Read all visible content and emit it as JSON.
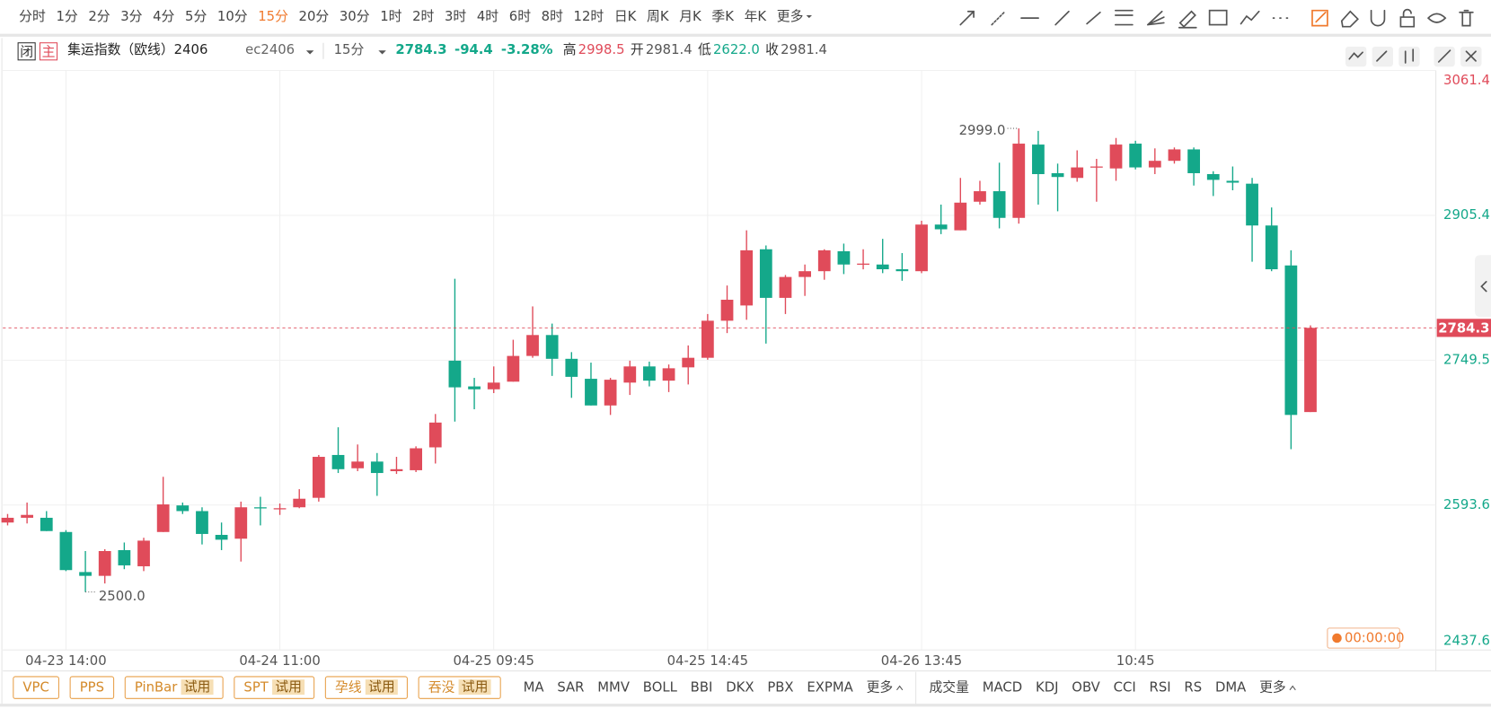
{
  "toolbar": {
    "periods": [
      "分时",
      "1分",
      "2分",
      "3分",
      "4分",
      "5分",
      "10分",
      "15分",
      "20分",
      "30分",
      "1时",
      "2时",
      "3时",
      "4时",
      "6时",
      "8时",
      "12时",
      "日K",
      "周K",
      "月K",
      "季K",
      "年K",
      "更多"
    ],
    "selected": 7
  },
  "header": {
    "close_icon": "闭",
    "main_icon": "主",
    "name": "集运指数（欧线）2406",
    "code": "ec2406",
    "period": "15分",
    "price": "2784.3",
    "change": "-94.4",
    "change_pct": "-3.28%",
    "stats": [
      {
        "label": "高",
        "value": "2998.5"
      },
      {
        "label": "开",
        "value": "2981.4"
      },
      {
        "label": "低",
        "value": "2622.0"
      },
      {
        "label": "收",
        "value": "2981.4"
      }
    ]
  },
  "chart_data": {
    "type": "candlestick",
    "categories": [
      null,
      null,
      null,
      "04-23 14:00",
      null,
      null,
      null,
      null,
      null,
      null,
      null,
      null,
      null,
      null,
      "04-24 11:00",
      null,
      null,
      null,
      null,
      null,
      null,
      null,
      null,
      null,
      null,
      "04-25 09:45",
      null,
      null,
      null,
      null,
      null,
      null,
      null,
      null,
      null,
      null,
      "04-25 14:45",
      null,
      null,
      null,
      null,
      null,
      null,
      null,
      null,
      null,
      null,
      "04-26 13:45",
      null,
      null,
      null,
      null,
      null,
      null,
      null,
      null,
      null,
      null,
      "10:45",
      null,
      null,
      null,
      null,
      null,
      null,
      null,
      null,
      null
    ],
    "open": [
      2574.8,
      2579.9,
      2579.9,
      2564.6,
      2521.5,
      2517.4,
      2545.1,
      2527.7,
      2564.6,
      2593.2,
      2587.1,
      2561.5,
      2557.4,
      2591.2,
      2589.1,
      2591.2,
      2601.4,
      2647.5,
      2633.2,
      2640.4,
      2630.1,
      2631.1,
      2655.7,
      2749.0,
      2721.3,
      2718.2,
      2726.4,
      2754.1,
      2776.6,
      2751.0,
      2729.5,
      2700.8,
      2725.4,
      2742.8,
      2727.5,
      2741.8,
      2752.1,
      2792.0,
      2808.4,
      2868.9,
      2816.6,
      2839.1,
      2845.3,
      2866.8,
      2852.5,
      2852.5,
      2847.4,
      2845.3,
      2895.5,
      2889.3,
      2920.1,
      2931.4,
      2902.7,
      2981.6,
      2950.8,
      2945.7,
      2957.0,
      2955.9,
      2982.6,
      2957.0,
      2964.1,
      2976.4,
      2949.8,
      2942.6,
      2939.5,
      2894.5,
      2851.5,
      2693.7
    ],
    "high": [
      2584.0,
      2596.3,
      2587.1,
      2566.6,
      2544.1,
      2546.1,
      2553.3,
      2558.4,
      2624.0,
      2596.3,
      2591.2,
      2574.8,
      2597.3,
      2602.5,
      2595.3,
      2610.7,
      2647.5,
      2677.3,
      2658.8,
      2649.6,
      2645.5,
      2656.8,
      2691.6,
      2837.1,
      2730.5,
      2742.8,
      2771.5,
      2807.4,
      2788.9,
      2758.2,
      2746.9,
      2730.5,
      2749.0,
      2748.0,
      2744.9,
      2765.4,
      2799.2,
      2829.9,
      2889.3,
      2873.0,
      2841.2,
      2852.5,
      2868.9,
      2875.0,
      2868.9,
      2880.1,
      2864.8,
      2899.6,
      2917.0,
      2945.7,
      2942.6,
      2962.1,
      2999.0,
      2996.3,
      2961.1,
      2975.4,
      2966.2,
      2988.7,
      2985.7,
      2977.5,
      2978.5,
      2978.5,
      2952.9,
      2958.0,
      2945.7,
      2913.9,
      2867.8,
      2787.0
    ],
    "low": [
      2571.7,
      2573.8,
      2565.6,
      2522.5,
      2500.0,
      2509.2,
      2524.6,
      2522.5,
      2564.6,
      2584.0,
      2551.2,
      2545.1,
      2532.8,
      2571.7,
      2583.0,
      2590.2,
      2597.3,
      2628.1,
      2630.1,
      2603.5,
      2627.1,
      2629.1,
      2638.3,
      2683.4,
      2696.7,
      2714.1,
      2726.4,
      2752.1,
      2732.6,
      2709.0,
      2700.8,
      2690.6,
      2712.1,
      2721.3,
      2715.2,
      2723.4,
      2750.0,
      2778.7,
      2793.0,
      2767.4,
      2799.2,
      2818.7,
      2836.1,
      2842.2,
      2847.3,
      2843.2,
      2835.0,
      2843.2,
      2885.2,
      2889.3,
      2917.0,
      2891.4,
      2896.5,
      2917.0,
      2909.8,
      2941.6,
      2920.1,
      2942.6,
      2954.9,
      2949.8,
      2961.1,
      2937.5,
      2926.2,
      2932.4,
      2855.5,
      2845.3,
      2653.7,
      2693.7
    ],
    "close": [
      2579.9,
      2583.0,
      2565.6,
      2523.6,
      2517.4,
      2544.1,
      2528.7,
      2555.3,
      2594.3,
      2587.1,
      2562.5,
      2556.3,
      2591.2,
      2590.2,
      2590.2,
      2600.4,
      2645.5,
      2632.2,
      2640.4,
      2628.1,
      2632.2,
      2654.7,
      2682.4,
      2720.3,
      2718.2,
      2725.4,
      2754.1,
      2776.6,
      2751.0,
      2731.6,
      2700.8,
      2728.5,
      2742.8,
      2727.5,
      2740.8,
      2752.1,
      2792.0,
      2814.6,
      2867.8,
      2816.6,
      2839.1,
      2845.3,
      2867.8,
      2852.5,
      2853.5,
      2847.4,
      2845.3,
      2895.5,
      2890.4,
      2919.1,
      2931.4,
      2902.7,
      2982.6,
      2949.8,
      2946.7,
      2957.0,
      2958.0,
      2981.6,
      2957.0,
      2964.1,
      2976.4,
      2950.8,
      2943.6,
      2940.6,
      2894.5,
      2847.4,
      2690.6,
      2784.3
    ],
    "high_labels": [
      null,
      null,
      null,
      null,
      null,
      null,
      null,
      null,
      null,
      null,
      null,
      null,
      null,
      null,
      null,
      null,
      null,
      null,
      null,
      null,
      null,
      null,
      null,
      null,
      null,
      null,
      null,
      null,
      null,
      null,
      null,
      null,
      null,
      null,
      null,
      null,
      null,
      null,
      null,
      null,
      null,
      null,
      null,
      null,
      null,
      null,
      null,
      null,
      null,
      null,
      null,
      null,
      "2999.0",
      null,
      null,
      null,
      null,
      null,
      null,
      null,
      null,
      null,
      null,
      null,
      null,
      null,
      null,
      null
    ],
    "low_labels": [
      null,
      null,
      null,
      null,
      "2500.0",
      null,
      null,
      null,
      null,
      null,
      null,
      null,
      null,
      null,
      null,
      null,
      null,
      null,
      null,
      null,
      null,
      null,
      null,
      null,
      null,
      null,
      null,
      null,
      null,
      null,
      null,
      null,
      null,
      null,
      null,
      null,
      null,
      null,
      null,
      null,
      null,
      null,
      null,
      null,
      null,
      null,
      null,
      null,
      null,
      null,
      null,
      null,
      null,
      null,
      null,
      null,
      null,
      null,
      null,
      null,
      null,
      null,
      null,
      null,
      null,
      null,
      null,
      null
    ],
    "close_labels": [
      null,
      null,
      null,
      null,
      null,
      null,
      null,
      null,
      null,
      null,
      null,
      null,
      null,
      null,
      null,
      null,
      null,
      null,
      null,
      null,
      null,
      null,
      null,
      null,
      null,
      null,
      null,
      null,
      null,
      null,
      null,
      null,
      null,
      null,
      null,
      null,
      null,
      null,
      null,
      null,
      null,
      null,
      null,
      null,
      null,
      null,
      null,
      null,
      null,
      null,
      null,
      null,
      null,
      null,
      null,
      null,
      null,
      null,
      null,
      null,
      null,
      null,
      null,
      null,
      null,
      null,
      null,
      "2784.3"
    ],
    "up_color": "#e04b5a",
    "down_color": "#14a88a",
    "ylim": [
      2437.6,
      3061.4
    ],
    "yticks": [
      3061.4,
      2905.4,
      2749.5,
      2593.6,
      2437.6
    ],
    "grid": true
  },
  "timer": "00:00:00",
  "tools": [
    {
      "text": "VPC"
    },
    {
      "text": "PPS"
    },
    {
      "text": "PinBar",
      "badge": "试用"
    },
    {
      "text": "SPT",
      "badge": "试用"
    },
    {
      "text": "孕线",
      "badge": "试用"
    },
    {
      "text": "吞没",
      "badge": "试用"
    }
  ],
  "main_indicators": [
    "MA",
    "SAR",
    "MMV",
    "BOLL",
    "BBI",
    "DKX",
    "PBX",
    "EXPMA",
    "更多"
  ],
  "sub_indicators": [
    "成交量",
    "MACD",
    "KDJ",
    "OBV",
    "CCI",
    "RSI",
    "RS",
    "DMA",
    "更多"
  ]
}
